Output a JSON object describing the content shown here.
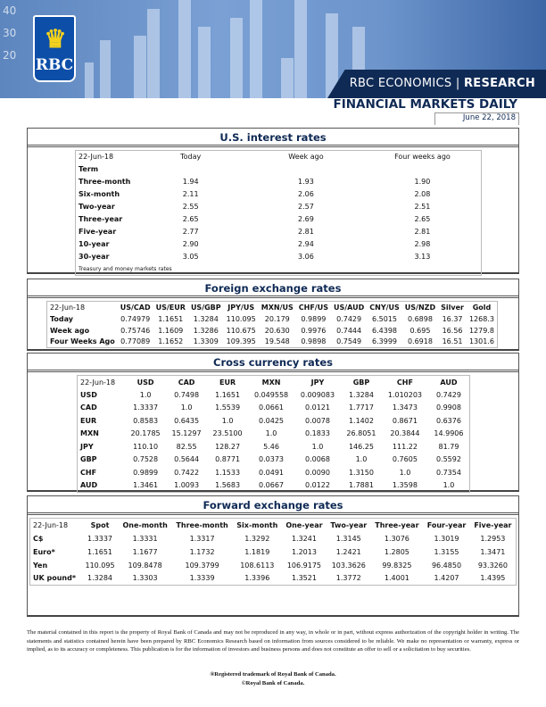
{
  "header": {
    "brand": "RBC",
    "section_prefix": "RBC ECONOMICS",
    "section_suffix": "RESEARCH",
    "title": "FINANCIAL MARKETS DAILY",
    "date": "June 22, 2018",
    "banner_axis": [
      "40",
      "30",
      "20"
    ]
  },
  "us_rates": {
    "title": "U.S. interest rates",
    "columns": [
      "22-Jun-18",
      "Today",
      "Week ago",
      "Four weeks ago"
    ],
    "term_label": "Term",
    "rows": [
      [
        "Three-month",
        "1.94",
        "1.93",
        "1.90"
      ],
      [
        "Six-month",
        "2.11",
        "2.06",
        "2.08"
      ],
      [
        "Two-year",
        "2.55",
        "2.57",
        "2.51"
      ],
      [
        "Three-year",
        "2.65",
        "2.69",
        "2.65"
      ],
      [
        "Five-year",
        "2.77",
        "2.81",
        "2.81"
      ],
      [
        "10-year",
        "2.90",
        "2.94",
        "2.98"
      ],
      [
        "30-year",
        "3.05",
        "3.06",
        "3.13"
      ]
    ],
    "note": "Treasury and money markets rates"
  },
  "fx": {
    "title": "Foreign exchange rates",
    "columns": [
      "22-Jun-18",
      "US/CAD",
      "US/EUR",
      "US/GBP",
      "JPY/US",
      "MXN/US",
      "CHF/US",
      "US/AUD",
      "CNY/US",
      "US/NZD",
      "Silver",
      "Gold"
    ],
    "rows": [
      [
        "Today",
        "0.74979",
        "1.1651",
        "1.3284",
        "110.095",
        "20.179",
        "0.9899",
        "0.7429",
        "6.5015",
        "0.6898",
        "16.37",
        "1268.3"
      ],
      [
        "Week ago",
        "0.75746",
        "1.1609",
        "1.3286",
        "110.675",
        "20.630",
        "0.9976",
        "0.7444",
        "6.4398",
        "0.695",
        "16.56",
        "1279.8"
      ],
      [
        "Four Weeks Ago",
        "0.77089",
        "1.1652",
        "1.3309",
        "109.395",
        "19.548",
        "0.9898",
        "0.7549",
        "6.3999",
        "0.6918",
        "16.51",
        "1301.6"
      ]
    ]
  },
  "cross": {
    "title": "Cross currency rates",
    "columns": [
      "22-Jun-18",
      "USD",
      "CAD",
      "EUR",
      "MXN",
      "JPY",
      "GBP",
      "CHF",
      "AUD"
    ],
    "rows": [
      [
        "USD",
        "1.0",
        "0.7498",
        "1.1651",
        "0.049558",
        "0.009083",
        "1.3284",
        "1.010203",
        "0.7429"
      ],
      [
        "CAD",
        "1.3337",
        "1.0",
        "1.5539",
        "0.0661",
        "0.0121",
        "1.7717",
        "1.3473",
        "0.9908"
      ],
      [
        "EUR",
        "0.8583",
        "0.6435",
        "1.0",
        "0.0425",
        "0.0078",
        "1.1402",
        "0.8671",
        "0.6376"
      ],
      [
        "MXN",
        "20.1785",
        "15.1297",
        "23.5100",
        "1.0",
        "0.1833",
        "26.8051",
        "20.3844",
        "14.9906"
      ],
      [
        "JPY",
        "110.10",
        "82.55",
        "128.27",
        "5.46",
        "1.0",
        "146.25",
        "111.22",
        "81.79"
      ],
      [
        "GBP",
        "0.7528",
        "0.5644",
        "0.8771",
        "0.0373",
        "0.0068",
        "1.0",
        "0.7605",
        "0.5592"
      ],
      [
        "CHF",
        "0.9899",
        "0.7422",
        "1.1533",
        "0.0491",
        "0.0090",
        "1.3150",
        "1.0",
        "0.7354"
      ],
      [
        "AUD",
        "1.3461",
        "1.0093",
        "1.5683",
        "0.0667",
        "0.0122",
        "1.7881",
        "1.3598",
        "1.0"
      ]
    ]
  },
  "forward": {
    "title": "Forward exchange rates",
    "columns": [
      "22-Jun-18",
      "Spot",
      "One-month",
      "Three-month",
      "Six-month",
      "One-year",
      "Two-year",
      "Three-year",
      "Four-year",
      "Five-year"
    ],
    "rows": [
      [
        "C$",
        "1.3337",
        "1.3331",
        "1.3317",
        "1.3292",
        "1.3241",
        "1.3145",
        "1.3076",
        "1.3019",
        "1.2953"
      ],
      [
        "Euro*",
        "1.1651",
        "1.1677",
        "1.1732",
        "1.1819",
        "1.2013",
        "1.2421",
        "1.2805",
        "1.3155",
        "1.3471"
      ],
      [
        "Yen",
        "110.095",
        "109.8478",
        "109.3799",
        "108.6113",
        "106.9175",
        "103.3626",
        "99.8325",
        "96.4850",
        "93.3260"
      ],
      [
        "UK pound*",
        "1.3284",
        "1.3303",
        "1.3339",
        "1.3396",
        "1.3521",
        "1.3772",
        "1.4001",
        "1.4207",
        "1.4395"
      ]
    ]
  },
  "footer": {
    "disclaimer": "The material contained in this report is the property of Royal Bank of Canada and may not be reproduced in any way, in whole or in part, without express authorization of the copyright holder in writing. The statements and statistics contained herein have been prepared by RBC Economics Research based on information from sources considered to be reliable. We make no representation or warranty, express or implied, as to its accuracy or completeness. This publication is for the information of investors and business persons and does not constitute an offer to sell or a solicitation to buy securities.",
    "trademark": "®Registered trademark of Royal Bank of Canada.",
    "copyright": "©Royal Bank of Canada."
  }
}
